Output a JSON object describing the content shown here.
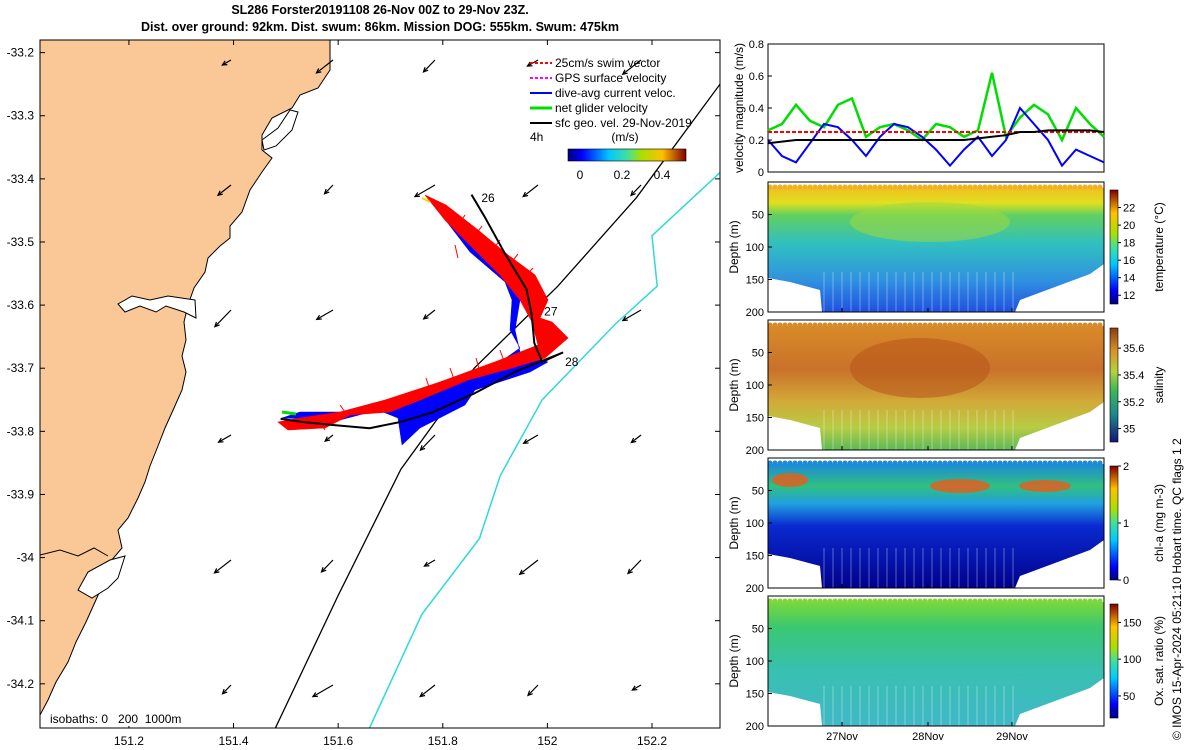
{
  "title": {
    "line1": "SL286 Forster20191108 26-Nov 00Z to 29-Nov 23Z.",
    "line2": "Dist. over ground: 92km. Dist. swum: 86km. Mission DOG: 555km. Swum: 475km"
  },
  "credit": "© IMOS 15-Apr-2024 05:21:10 Hobart time. QC flags 1  2",
  "chart_data": [
    {
      "type": "map",
      "x_ticks": [
        "151.2",
        "151.4",
        "151.6",
        "151.8",
        "152",
        "152.2"
      ],
      "x_tick_values": [
        151.2,
        151.4,
        151.6,
        151.8,
        152.0,
        152.2
      ],
      "y_ticks": [
        "-33.2",
        "-33.3",
        "-33.4",
        "-33.5",
        "-33.6",
        "-33.7",
        "-33.8",
        "-33.9",
        "-34",
        "-34.1",
        "-34.2"
      ],
      "y_tick_values": [
        -33.2,
        -33.3,
        -33.4,
        -33.5,
        -33.6,
        -33.7,
        -33.8,
        -33.9,
        -34.0,
        -34.1,
        -34.2
      ],
      "xlim": [
        151.03,
        152.33
      ],
      "ylim": [
        -34.27,
        -33.18
      ],
      "legend": [
        {
          "label": "25cm/s swim vector",
          "color": "#ff0000"
        },
        {
          "label": "GPS surface velocity",
          "color": "#ff00ff"
        },
        {
          "label": "dive-avg current veloc.",
          "color": "#0000ff"
        },
        {
          "label": "net glider velocity",
          "color": "#00dd00"
        },
        {
          "label": "sfc geo. vel. 29-Nov-2019",
          "color": "#000000"
        }
      ],
      "legend_position": "top-right",
      "colorbar": {
        "label": "(m/s)",
        "scale_label": "4h",
        "ticks": [
          "0",
          "0.2",
          "0.4"
        ]
      },
      "day_labels": [
        {
          "label": "26",
          "lon": 151.87,
          "lat": -33.43
        },
        {
          "label": "27",
          "lon": 151.99,
          "lat": -33.61
        },
        {
          "label": "28",
          "lon": 152.03,
          "lat": -33.69
        }
      ],
      "track": [
        {
          "lon": 151.855,
          "lat": -33.425
        },
        {
          "lon": 151.88,
          "lat": -33.46
        },
        {
          "lon": 151.92,
          "lat": -33.52
        },
        {
          "lon": 151.96,
          "lat": -33.575
        },
        {
          "lon": 151.97,
          "lat": -33.615
        },
        {
          "lon": 151.975,
          "lat": -33.66
        },
        {
          "lon": 151.99,
          "lat": -33.69
        },
        {
          "lon": 152.03,
          "lat": -33.675
        },
        {
          "lon": 151.94,
          "lat": -33.705
        },
        {
          "lon": 151.86,
          "lat": -33.74
        },
        {
          "lon": 151.78,
          "lat": -33.77
        },
        {
          "lon": 151.72,
          "lat": -33.785
        },
        {
          "lon": 151.66,
          "lat": -33.795
        },
        {
          "lon": 151.59,
          "lat": -33.79
        },
        {
          "lon": 151.53,
          "lat": -33.785
        },
        {
          "lon": 151.49,
          "lat": -33.78
        }
      ],
      "isobaths_label": "isobaths: 0   200  1000m",
      "isobath_200": [
        {
          "lon": 151.48,
          "lat": -34.27
        },
        {
          "lon": 151.6,
          "lat": -34.06
        },
        {
          "lon": 151.72,
          "lat": -33.86
        },
        {
          "lon": 151.86,
          "lat": -33.7
        },
        {
          "lon": 152.02,
          "lat": -33.57
        },
        {
          "lon": 152.17,
          "lat": -33.43
        },
        {
          "lon": 152.33,
          "lat": -33.25
        }
      ],
      "isobath_1000": [
        {
          "lon": 151.66,
          "lat": -34.27
        },
        {
          "lon": 151.76,
          "lat": -34.09
        },
        {
          "lon": 151.87,
          "lat": -33.97
        },
        {
          "lon": 151.91,
          "lat": -33.87
        },
        {
          "lon": 151.99,
          "lat": -33.75
        },
        {
          "lon": 152.13,
          "lat": -33.63
        },
        {
          "lon": 152.21,
          "lat": -33.57
        },
        {
          "lon": 152.2,
          "lat": -33.49
        },
        {
          "lon": 152.33,
          "lat": -33.39
        }
      ]
    },
    {
      "type": "line",
      "ylabel": "velocity magnitude (m/s)",
      "ylim": [
        0,
        0.8
      ],
      "y_ticks": [
        "0",
        "0.2",
        "0.4",
        "0.6",
        "0.8"
      ],
      "y_tick_values": [
        0,
        0.2,
        0.4,
        0.6,
        0.8
      ],
      "x": [
        0,
        4,
        8,
        12,
        16,
        20,
        24,
        28,
        32,
        36,
        40,
        44,
        48,
        52,
        56,
        60,
        64,
        68,
        72,
        76,
        80,
        84,
        88,
        92,
        96
      ],
      "series": [
        {
          "color": "#00dd00",
          "values": [
            0.26,
            0.3,
            0.42,
            0.32,
            0.28,
            0.42,
            0.46,
            0.22,
            0.28,
            0.3,
            0.26,
            0.2,
            0.3,
            0.28,
            0.22,
            0.26,
            0.62,
            0.22,
            0.34,
            0.42,
            0.36,
            0.2,
            0.4,
            0.3,
            0.22
          ]
        },
        {
          "color": "#0000ff",
          "values": [
            0.2,
            0.1,
            0.06,
            0.18,
            0.3,
            0.28,
            0.2,
            0.1,
            0.22,
            0.3,
            0.28,
            0.22,
            0.14,
            0.04,
            0.14,
            0.22,
            0.1,
            0.2,
            0.4,
            0.3,
            0.2,
            0.04,
            0.14,
            0.1,
            0.06
          ]
        },
        {
          "color": "#ff0000",
          "values": [
            0.25,
            0.25,
            0.25,
            0.25,
            0.25,
            0.25,
            0.25,
            0.25,
            0.25,
            0.25,
            0.25,
            0.25,
            0.25,
            0.25,
            0.25,
            0.25,
            0.25,
            0.25,
            0.25,
            0.25,
            0.25,
            0.25,
            0.25,
            0.25,
            0.25
          ]
        },
        {
          "color": "#000000",
          "values": [
            0.18,
            0.19,
            0.2,
            0.2,
            0.2,
            0.2,
            0.2,
            0.2,
            0.2,
            0.2,
            0.2,
            0.2,
            0.2,
            0.2,
            0.2,
            0.21,
            0.22,
            0.23,
            0.25,
            0.25,
            0.26,
            0.26,
            0.26,
            0.26,
            0.25
          ]
        }
      ]
    },
    {
      "type": "heatmap",
      "ylabel": "Depth (m)",
      "y_ticks": [
        "50",
        "100",
        "150",
        "200"
      ],
      "colorbar_label": "temperature (°C)",
      "colorbar_ticks": [
        "12",
        "14",
        "16",
        "18",
        "20",
        "22"
      ],
      "colorbar_range": [
        11,
        24
      ]
    },
    {
      "type": "heatmap",
      "ylabel": "Depth (m)",
      "y_ticks": [
        "50",
        "100",
        "150",
        "200"
      ],
      "colorbar_label": "salinity",
      "colorbar_ticks": [
        "35",
        "35.2",
        "35.4",
        "35.6"
      ],
      "colorbar_range": [
        34.9,
        35.75
      ]
    },
    {
      "type": "heatmap",
      "ylabel": "Depth (m)",
      "y_ticks": [
        "50",
        "100",
        "150",
        "200"
      ],
      "colorbar_label": "chl-a (mg m-3)",
      "colorbar_ticks": [
        "0",
        "1",
        "2"
      ],
      "colorbar_range": [
        0,
        2
      ]
    },
    {
      "type": "heatmap",
      "ylabel": "Depth (m)",
      "y_ticks": [
        "50",
        "100",
        "150",
        "200"
      ],
      "colorbar_label": "Ox. sat. ratio (%)",
      "colorbar_ticks": [
        "50",
        "100",
        "150"
      ],
      "colorbar_range": [
        20,
        175
      ],
      "x_ticks": [
        "27Nov",
        "28Nov",
        "29Nov"
      ]
    }
  ]
}
